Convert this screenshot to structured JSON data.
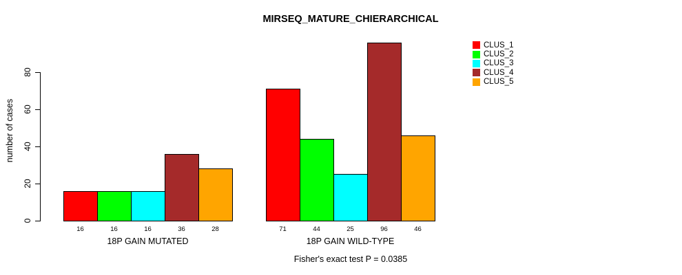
{
  "chart_data": {
    "type": "bar",
    "title": "MIRSEQ_MATURE_CHIERARCHICAL",
    "ylabel": "number of cases",
    "xlabel": "",
    "caption": "Fisher's exact test P = 0.0385",
    "categories": [
      "18P GAIN MUTATED",
      "18P GAIN WILD-TYPE"
    ],
    "series": [
      {
        "name": "CLUS_1",
        "color": "#FF0000",
        "values": [
          16,
          71
        ]
      },
      {
        "name": "CLUS_2",
        "color": "#00FF00",
        "values": [
          16,
          44
        ]
      },
      {
        "name": "CLUS_3",
        "color": "#00FFFF",
        "values": [
          16,
          25
        ]
      },
      {
        "name": "CLUS_4",
        "color": "#A52A2A",
        "values": [
          36,
          96
        ]
      },
      {
        "name": "CLUS_5",
        "color": "#FFA500",
        "values": [
          28,
          46
        ]
      }
    ],
    "yticks": [
      0,
      20,
      40,
      60,
      80
    ],
    "ylim": [
      0,
      96
    ],
    "grid": false,
    "legend_position": "right-outside",
    "bar_value_labels_shown": true,
    "bar_border_color": "#000000",
    "background": "#FFFFFF"
  }
}
